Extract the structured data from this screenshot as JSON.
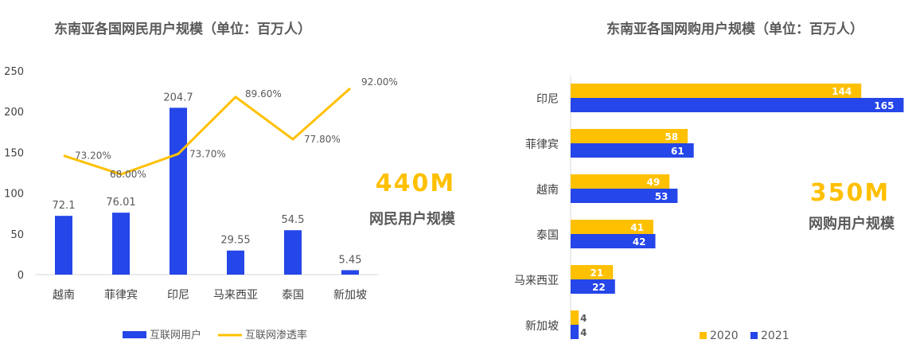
{
  "chart_data": [
    {
      "type": "bar",
      "title": "东南亚各国网民用户规模（单位：百万人）",
      "categories": [
        "越南",
        "菲律宾",
        "印尼",
        "马来西亚",
        "泰国",
        "新加坡"
      ],
      "series": [
        {
          "name": "互联网用户",
          "type": "bar",
          "values": [
            72.1,
            76.01,
            204.7,
            29.55,
            54.5,
            5.45
          ],
          "labels": [
            "72.1",
            "76.01",
            "204.7",
            "29.55",
            "54.5",
            "5.45"
          ],
          "color": "#2546E8"
        },
        {
          "name": "互联网渗透率",
          "type": "line",
          "values": [
            73.2,
            68.0,
            73.7,
            89.6,
            77.8,
            92.0
          ],
          "labels": [
            "73.20%",
            "68.00%",
            "73.70%",
            "89.60%",
            "77.80%",
            "92.00%"
          ],
          "color": "#FFC000"
        }
      ],
      "ylim": [
        0,
        250
      ],
      "yticks": [
        "0",
        "50",
        "100",
        "150",
        "200",
        "250"
      ],
      "legend_position": "bottom",
      "annotation": {
        "value": "440M",
        "caption": "网民用户规模"
      }
    },
    {
      "type": "bar",
      "orientation": "horizontal",
      "title": "东南亚各国网购用户规模（单位：百万人）",
      "categories": [
        "印尼",
        "菲律宾",
        "越南",
        "泰国",
        "马来西亚",
        "新加坡"
      ],
      "series": [
        {
          "name": "2020",
          "values": [
            144,
            58,
            49,
            41,
            21,
            4
          ],
          "labels": [
            "144",
            "58",
            "49",
            "41",
            "21",
            "4"
          ],
          "color": "#FFC000"
        },
        {
          "name": "2021",
          "values": [
            165,
            61,
            53,
            42,
            22,
            4
          ],
          "labels": [
            "165",
            "61",
            "53",
            "42",
            "22",
            "4"
          ],
          "color": "#2546E8"
        }
      ],
      "xlim": [
        0,
        170
      ],
      "legend_position": "bottom-right",
      "annotation": {
        "value": "350M",
        "caption": "网购用户规模"
      }
    }
  ]
}
